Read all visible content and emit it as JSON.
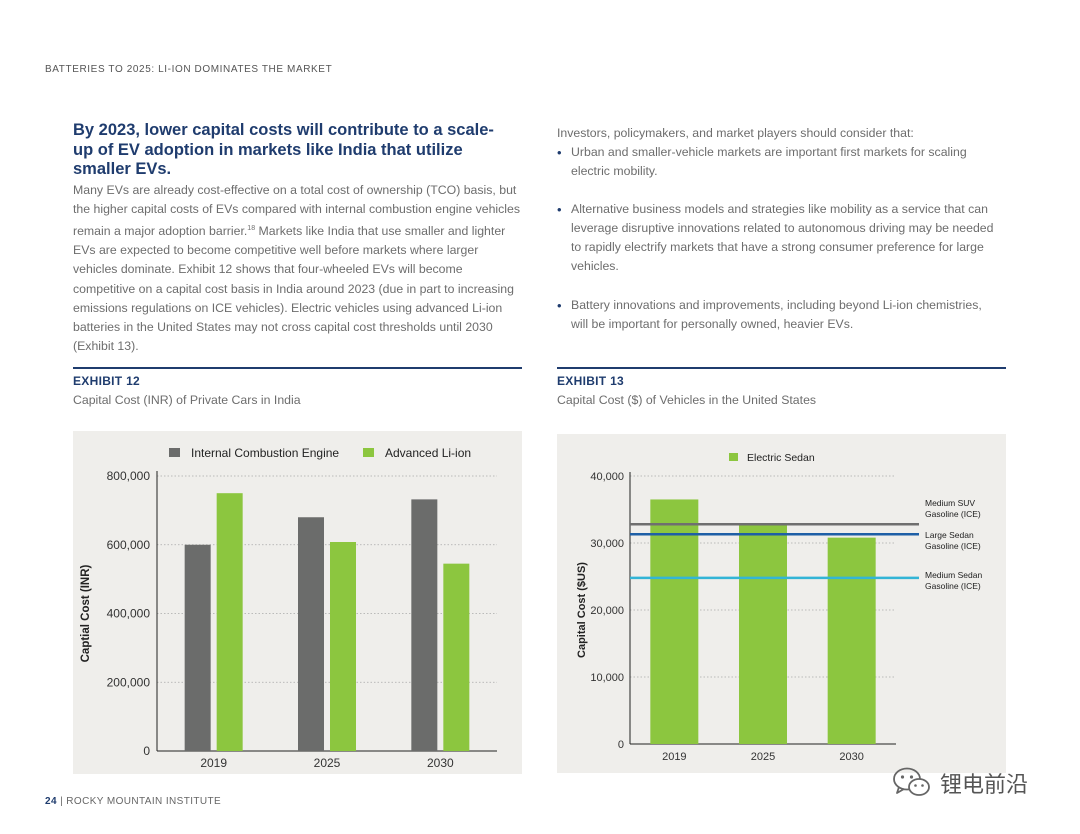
{
  "header": {
    "running_title": "BATTERIES TO 2025: LI-ION DOMINATES THE MARKET"
  },
  "left": {
    "heading": "By 2023, lower capital costs will contribute to a scale-up of EV adoption in markets like India that utilize smaller EVs.",
    "body_before_ref": "Many EVs are already cost-effective on a total cost of ownership (TCO) basis, but the higher capital costs of EVs compared with internal combustion engine vehicles remain a major adoption barrier.",
    "ref_num": "18",
    "body_after_ref": " Markets like India that use smaller and lighter EVs are expected to become competitive well before markets where larger vehicles dominate. Exhibit 12 shows that four-wheeled EVs will become competitive on a capital cost basis in India around 2023 (due in part to increasing emissions regulations on ICE vehicles). Electric vehicles using advanced Li-ion batteries in the United States may not cross capital cost thresholds until 2030 (Exhibit 13)."
  },
  "right": {
    "intro": "Investors, policymakers, and market players should consider that:",
    "bullets": [
      "Urban and smaller-vehicle markets are important first markets for scaling electric mobility.",
      "Alternative business models and strategies like mobility as a service that can leverage disruptive innovations related to autonomous driving may be needed to rapidly electrify markets that have a strong consumer preference for large vehicles.",
      "Battery innovations and improvements, including beyond Li-ion chemistries, will be important for personally owned, heavier EVs."
    ]
  },
  "exhibit12": {
    "label": "EXHIBIT 12",
    "title": "Capital Cost (INR) of Private Cars in India"
  },
  "exhibit13": {
    "label": "EXHIBIT 13",
    "title": "Capital Cost ($) of Vehicles in the United States"
  },
  "colors": {
    "navy": "#1f3c6e",
    "gray_bar": "#6b6c6b",
    "green_bar": "#8cc63f",
    "panel_bg": "#efeeeb",
    "ref_dark": "#6f6f6f",
    "ref_blue": "#1e5fa6",
    "ref_cyan": "#33b5d6"
  },
  "chart_data": [
    {
      "type": "bar",
      "title": "",
      "categories": [
        "2019",
        "2025",
        "2030"
      ],
      "series": [
        {
          "name": "Internal Combustion Engine",
          "values": [
            600000,
            680000,
            732000
          ]
        },
        {
          "name": "Advanced Li-ion",
          "values": [
            750000,
            608000,
            545000
          ]
        }
      ],
      "ylabel": "Captial Cost (INR)",
      "ylim": [
        0,
        800000
      ],
      "yticks": [
        0,
        200000,
        400000,
        600000,
        800000
      ],
      "ytick_labels": [
        "0",
        "200,000",
        "400,000",
        "600,000",
        "800,000"
      ],
      "grid": true,
      "legend_position": "top"
    },
    {
      "type": "bar",
      "title": "",
      "categories": [
        "2019",
        "2025",
        "2030"
      ],
      "series": [
        {
          "name": "Electric Sedan",
          "values": [
            36500,
            32800,
            30800
          ]
        }
      ],
      "reference_lines": [
        {
          "label_line1": "Medium SUV",
          "label_line2": "Gasoline (ICE)",
          "value": 32800
        },
        {
          "label_line1": "Large Sedan",
          "label_line2": "Gasoline (ICE)",
          "value": 31300
        },
        {
          "label_line1": "Medium Sedan",
          "label_line2": "Gasoline (ICE)",
          "value": 24800
        }
      ],
      "ylabel": "Capital Cost ($US)",
      "ylim": [
        0,
        40000
      ],
      "yticks": [
        0,
        10000,
        20000,
        30000,
        40000
      ],
      "ytick_labels": [
        "0",
        "10,000",
        "20,000",
        "30,000",
        "40,000"
      ],
      "grid": true,
      "legend_position": "top"
    }
  ],
  "footer": {
    "page_num": "24",
    "org": "| ROCKY MOUNTAIN INSTITUTE"
  },
  "watermark": {
    "text": "锂电前沿",
    "icon": "wechat-icon"
  }
}
